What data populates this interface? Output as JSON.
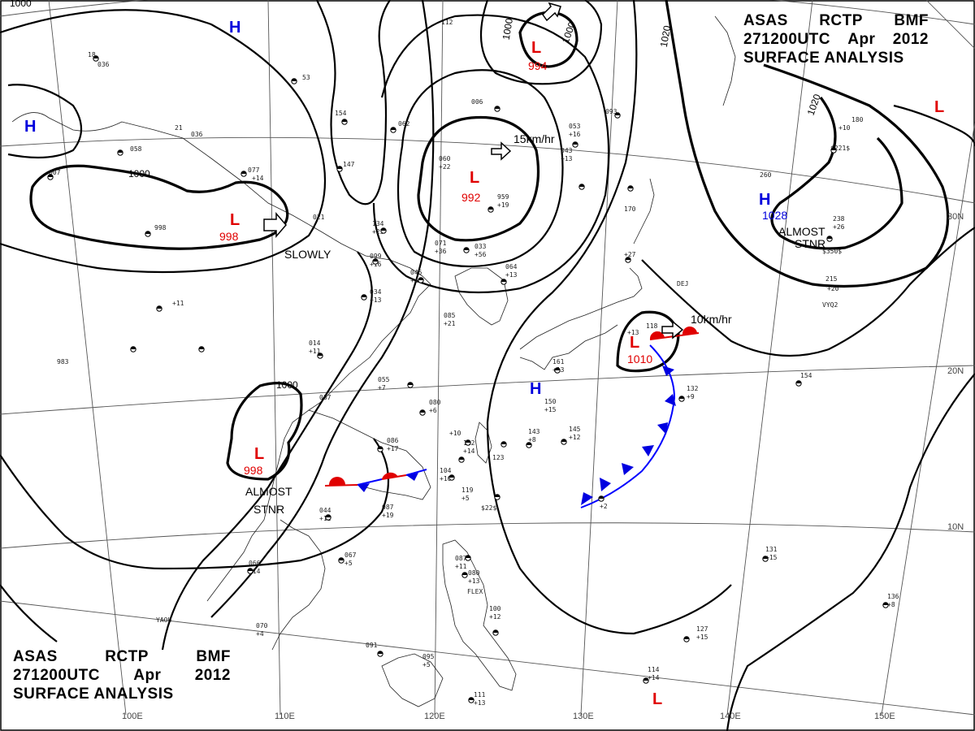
{
  "titles": {
    "top": {
      "line1": [
        "ASAS",
        "RCTP",
        "BMF"
      ],
      "line2": [
        "271200UTC",
        "Apr",
        "2012"
      ],
      "line3": "SURFACE ANALYSIS"
    },
    "bottom": {
      "line1": [
        "ASAS",
        "RCTP",
        "BMF"
      ],
      "line2": [
        "271200UTC",
        "Apr",
        "2012"
      ],
      "line3": "SURFACE ANALYSIS"
    }
  },
  "colors": {
    "high": "#0000dd",
    "low": "#e00000",
    "cold_front": "#0000ff",
    "warm_front": "#e00000",
    "isobar": "#000000"
  },
  "latitude_labels": [
    "30N",
    "20N",
    "10N"
  ],
  "longitude_labels": [
    "100E",
    "110E",
    "120E",
    "130E",
    "140E",
    "150E"
  ],
  "pressure_centers": [
    {
      "type": "H",
      "value": ""
    },
    {
      "type": "H",
      "value": ""
    },
    {
      "type": "L",
      "value": "994"
    },
    {
      "type": "L",
      "value": "992"
    },
    {
      "type": "L",
      "value": "998"
    },
    {
      "type": "H",
      "value": "1028"
    },
    {
      "type": "L",
      "value": ""
    },
    {
      "type": "L",
      "value": "998"
    },
    {
      "type": "L",
      "value": "1010"
    },
    {
      "type": "H",
      "value": ""
    },
    {
      "type": "L",
      "value": ""
    }
  ],
  "isobar_labels": [
    "1000",
    "1000",
    "1000",
    "1020",
    "1020",
    "1000",
    "1000"
  ],
  "motion_labels": [
    "SLOWLY",
    "15km/hr",
    "10km/hr",
    "ALMOST",
    "STNR",
    "ALMOST",
    "STNR"
  ],
  "station_reports": [
    "18",
    "036",
    "53",
    "112",
    "006",
    "21",
    "036",
    "062",
    "154",
    "077",
    "+14",
    "147",
    "058",
    "007",
    "021",
    "134",
    "+23",
    "998",
    "099",
    "+16",
    "045",
    "+40",
    "071",
    "+36",
    "033",
    "+56",
    "060",
    "+22",
    "959",
    "+19",
    "053",
    "+16",
    "043",
    "+13",
    "093",
    "170",
    "+27",
    "118",
    "+13",
    "260",
    "238",
    "+26",
    "$350$",
    "215",
    "+20",
    "180",
    "+10",
    "034",
    "+13",
    "014",
    "+11",
    "055",
    "+7",
    "080",
    "+6",
    "086",
    "+17",
    "087",
    "+19",
    "122",
    "+14",
    "123",
    "104",
    "+10",
    "119",
    "+5",
    "$22$",
    "143",
    "+8",
    "150",
    "+15",
    "145",
    "+12",
    "132",
    "+9",
    "161",
    "+13",
    "064",
    "+13",
    "085",
    "+21",
    "037",
    "066",
    "+14",
    "067",
    "+5",
    "044",
    "+11",
    "070",
    "+4",
    "091",
    "095",
    "+5",
    "100",
    "+12",
    "087",
    "+11",
    "080",
    "+13",
    "111",
    "+13",
    "127",
    "+15",
    "114",
    "+14",
    "136",
    "+8",
    "131",
    "+15",
    "154",
    "+11",
    "983",
    "+2",
    "$221$",
    "DEJ",
    "VYQ2",
    "FLEX",
    "YAOU",
    "+10",
    "+13"
  ]
}
